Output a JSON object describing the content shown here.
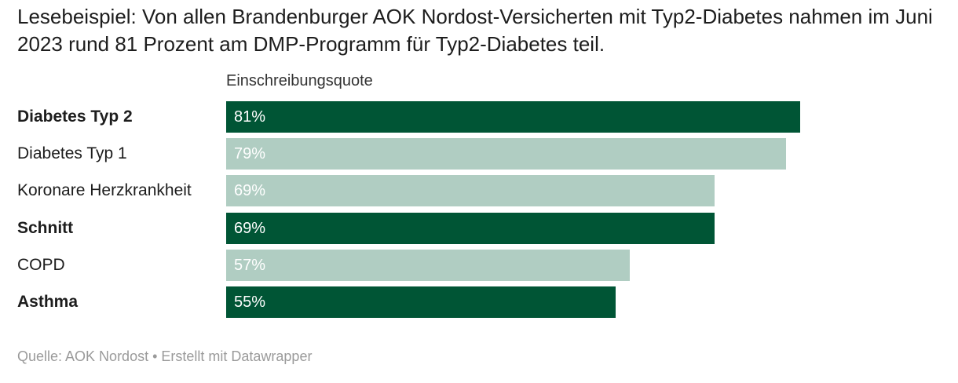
{
  "intro_text": "Lesebeispiel: Von allen Brandenburger AOK Nordost-Versicherten mit Typ2-Diabetes nahmen im Juni 2023 rund 81 Prozent am DMP-Programm für Typ2-Diabetes teil.",
  "column_header": "Einschreibungsquote",
  "source_text": "Quelle: AOK Nordost • Erstellt mit Datawrapper",
  "colors": {
    "highlight": "#005535",
    "muted": "#b0cdc2",
    "label_text": "#ffffff"
  },
  "chart_data": {
    "type": "bar",
    "orientation": "horizontal",
    "xlabel": "Einschreibungsquote",
    "xlim": [
      0,
      100
    ],
    "unit": "%",
    "categories": [
      "Diabetes Typ 2",
      "Diabetes Typ 1",
      "Koronare Herzkrankheit",
      "Schnitt",
      "COPD",
      "Asthma"
    ],
    "values": [
      81,
      79,
      69,
      69,
      57,
      55
    ],
    "value_labels": [
      "81%",
      "79%",
      "69%",
      "69%",
      "57%",
      "55%"
    ],
    "highlighted": [
      true,
      false,
      false,
      true,
      false,
      true
    ]
  }
}
